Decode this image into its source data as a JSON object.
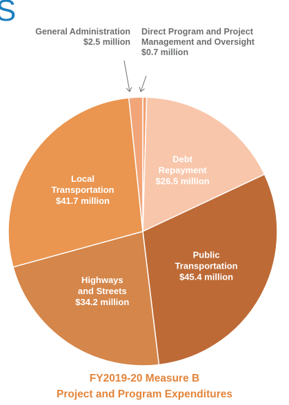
{
  "page": {
    "header_fragment": "S"
  },
  "chart_data": {
    "type": "pie",
    "title_lines": [
      "FY2019-20 Measure B",
      "Project and Program Expenditures"
    ],
    "slices": [
      {
        "lines": [
          "Direct Program and Project",
          "Management and Oversight",
          "$0.7 million"
        ],
        "value": 0.7,
        "color": "#f4a070",
        "label_outside": true
      },
      {
        "lines": [
          "Debt",
          "Repayment",
          "$26.5 million"
        ],
        "value": 26.5,
        "color": "#f8c6ab",
        "label_color": "#ffffff"
      },
      {
        "lines": [
          "Public",
          "Transportation",
          "$45.4 million"
        ],
        "value": 45.4,
        "color": "#bd6a36",
        "label_color": "#ffffff"
      },
      {
        "lines": [
          "Highways",
          "and Streets",
          "$34.2 million"
        ],
        "value": 34.2,
        "color": "#d5864a",
        "label_color": "#ffffff"
      },
      {
        "lines": [
          "Local",
          "Transportation",
          "$41.7 million"
        ],
        "value": 41.7,
        "color": "#ea9550",
        "label_color": "#ffffff"
      },
      {
        "lines": [
          "General Administration",
          "$2.5 million"
        ],
        "value": 2.5,
        "color": "#f1a579",
        "label_outside": true
      }
    ]
  }
}
